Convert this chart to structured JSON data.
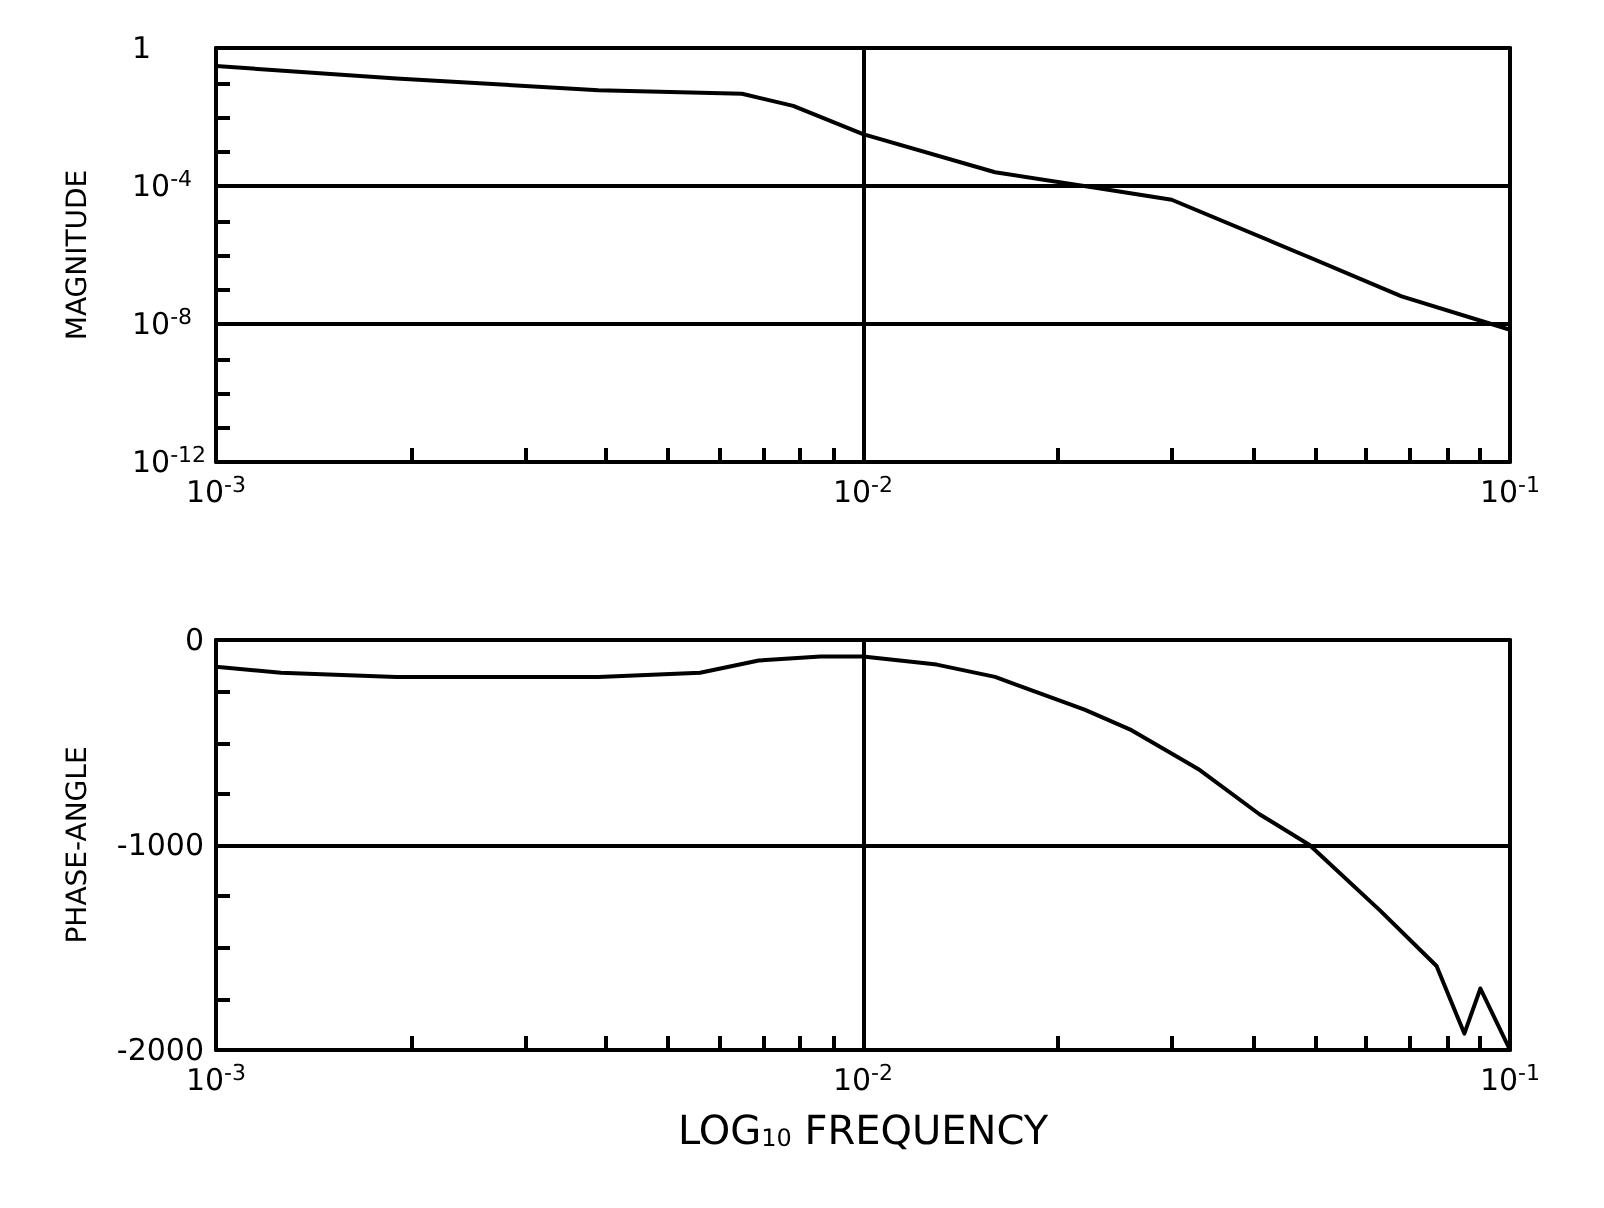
{
  "chart_data": [
    {
      "type": "line",
      "ylabel": "MAGNITUDE",
      "log": "xy",
      "grid": true,
      "marker": "none",
      "x": [
        0.001,
        0.0019,
        0.0039,
        0.0065,
        0.0078,
        0.01,
        0.016,
        0.023,
        0.03,
        0.048,
        0.068,
        0.1
      ],
      "series": [
        {
          "color": "#000000",
          "values": [
            0.3,
            0.13,
            0.06,
            0.047,
            0.021,
            0.0032,
            0.00025,
            8.7e-05,
            4e-05,
            1e-06,
            6.3e-08,
            6.8e-09
          ]
        }
      ],
      "xlim": [
        0.001,
        0.1
      ],
      "xticks": [
        {
          "value": 0.001,
          "label": "10$^{-3}$"
        },
        {
          "value": 0.002,
          "label": null
        },
        {
          "value": 0.003,
          "label": null
        },
        {
          "value": 0.004,
          "label": null
        },
        {
          "value": 0.005,
          "label": null
        },
        {
          "value": 0.006,
          "label": null
        },
        {
          "value": 0.007,
          "label": null
        },
        {
          "value": 0.008,
          "label": null
        },
        {
          "value": 0.009,
          "label": null
        },
        {
          "value": 0.01,
          "label": "10$^{-2}$"
        },
        {
          "value": 0.02,
          "label": null
        },
        {
          "value": 0.03,
          "label": null
        },
        {
          "value": 0.04,
          "label": null
        },
        {
          "value": 0.05,
          "label": null
        },
        {
          "value": 0.06,
          "label": null
        },
        {
          "value": 0.07,
          "label": null
        },
        {
          "value": 0.08,
          "label": null
        },
        {
          "value": 0.09,
          "label": null
        },
        {
          "value": 0.1,
          "label": "10$^{-1}$"
        }
      ],
      "ylim": [
        1e-12,
        1
      ],
      "yticks": [
        {
          "value": 1e-12,
          "label": "10$^{-12}$"
        },
        {
          "value": 1e-11,
          "label": null
        },
        {
          "value": 1e-10,
          "label": null
        },
        {
          "value": 1e-09,
          "label": null
        },
        {
          "value": 1e-08,
          "label": "10$^{-8}$"
        },
        {
          "value": 1e-07,
          "label": null
        },
        {
          "value": 1e-06,
          "label": null
        },
        {
          "value": 1e-05,
          "label": null
        },
        {
          "value": 0.0001,
          "label": "10$^{-4}$"
        },
        {
          "value": 0.001,
          "label": null
        },
        {
          "value": 0.01,
          "label": null
        },
        {
          "value": 0.1,
          "label": null
        },
        1
      ]
    },
    {
      "type": "line",
      "ylabel": "PHASE-ANGLE",
      "xlabel": "LOG$_{10}$ FREQUENCY",
      "log": "x",
      "grid": true,
      "marker": "none",
      "x": [
        0.001,
        0.00126,
        0.0019,
        0.0039,
        0.0056,
        0.0069,
        0.0086,
        0.01,
        0.013,
        0.016,
        0.022,
        0.026,
        0.033,
        0.041,
        0.049,
        0.063,
        0.077,
        0.085,
        0.09,
        0.1
      ],
      "series": [
        {
          "color": "#000000",
          "values": [
            -130,
            -160,
            -180,
            -180,
            -160,
            -100,
            -80,
            -80,
            -120,
            -180,
            -340,
            -440,
            -630,
            -850,
            -1000,
            -1320,
            -1590,
            -1920,
            -1700,
            -2000
          ]
        }
      ],
      "xlim": [
        0.001,
        0.1
      ],
      "xticks": [
        {
          "value": 0.001,
          "label": "10$^{-3}$"
        },
        {
          "value": 0.002,
          "label": null
        },
        {
          "value": 0.003,
          "label": null
        },
        {
          "value": 0.004,
          "label": null
        },
        {
          "value": 0.005,
          "label": null
        },
        {
          "value": 0.006,
          "label": null
        },
        {
          "value": 0.007,
          "label": null
        },
        {
          "value": 0.008,
          "label": null
        },
        {
          "value": 0.009,
          "label": null
        },
        {
          "value": 0.01,
          "label": "10$^{-2}$"
        },
        {
          "value": 0.02,
          "label": null
        },
        {
          "value": 0.03,
          "label": null
        },
        {
          "value": 0.04,
          "label": null
        },
        {
          "value": 0.05,
          "label": null
        },
        {
          "value": 0.06,
          "label": null
        },
        {
          "value": 0.07,
          "label": null
        },
        {
          "value": 0.08,
          "label": null
        },
        {
          "value": 0.09,
          "label": null
        },
        {
          "value": 0.1,
          "label": "10$^{-1}$"
        }
      ],
      "ylim": [
        -2000,
        0
      ],
      "yticks": [
        -2000,
        {
          "value": -1750,
          "label": null
        },
        {
          "value": -1500,
          "label": null
        },
        {
          "value": -1250,
          "label": null
        },
        -1000,
        {
          "value": -750,
          "label": null
        },
        {
          "value": -500,
          "label": null
        },
        {
          "value": -250,
          "label": null
        },
        0
      ]
    }
  ]
}
